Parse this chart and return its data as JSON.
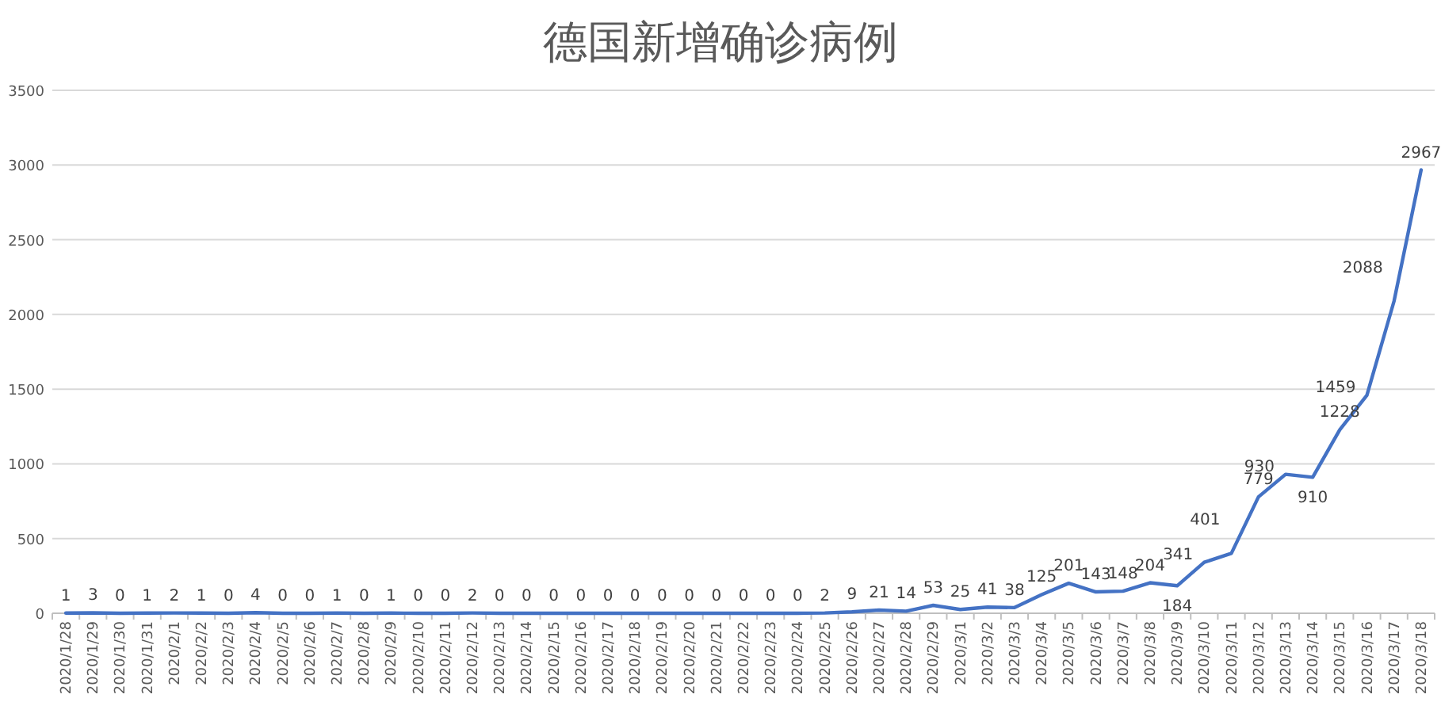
{
  "chart_data": {
    "type": "line",
    "title": "德国新增确诊病例",
    "categories": [
      "2020/1/28",
      "2020/1/29",
      "2020/1/30",
      "2020/1/31",
      "2020/2/1",
      "2020/2/2",
      "2020/2/3",
      "2020/2/4",
      "2020/2/5",
      "2020/2/6",
      "2020/2/7",
      "2020/2/8",
      "2020/2/9",
      "2020/2/10",
      "2020/2/11",
      "2020/2/12",
      "2020/2/13",
      "2020/2/14",
      "2020/2/15",
      "2020/2/16",
      "2020/2/17",
      "2020/2/18",
      "2020/2/19",
      "2020/2/20",
      "2020/2/21",
      "2020/2/22",
      "2020/2/23",
      "2020/2/24",
      "2020/2/25",
      "2020/2/26",
      "2020/2/27",
      "2020/2/28",
      "2020/2/29",
      "2020/3/1",
      "2020/3/2",
      "2020/3/3",
      "2020/3/4",
      "2020/3/5",
      "2020/3/6",
      "2020/3/7",
      "2020/3/8",
      "2020/3/9",
      "2020/3/10",
      "2020/3/11",
      "2020/3/12",
      "2020/3/13",
      "2020/3/14",
      "2020/3/15",
      "2020/3/16",
      "2020/3/17",
      "2020/3/18"
    ],
    "values": [
      1,
      3,
      0,
      1,
      2,
      1,
      0,
      4,
      0,
      0,
      1,
      0,
      1,
      0,
      0,
      2,
      0,
      0,
      0,
      0,
      0,
      0,
      0,
      0,
      0,
      0,
      0,
      0,
      2,
      9,
      21,
      14,
      53,
      25,
      41,
      38,
      125,
      201,
      143,
      148,
      204,
      184,
      341,
      401,
      779,
      930,
      910,
      1228,
      1459,
      2088,
      2967
    ],
    "color": "#4472c4",
    "ylim": [
      0,
      3500
    ],
    "yticks": [
      0,
      500,
      1000,
      1500,
      2000,
      2500,
      3000,
      3500
    ],
    "grid": "y",
    "data_labels": true,
    "marker": "none",
    "line_style": "solid"
  }
}
